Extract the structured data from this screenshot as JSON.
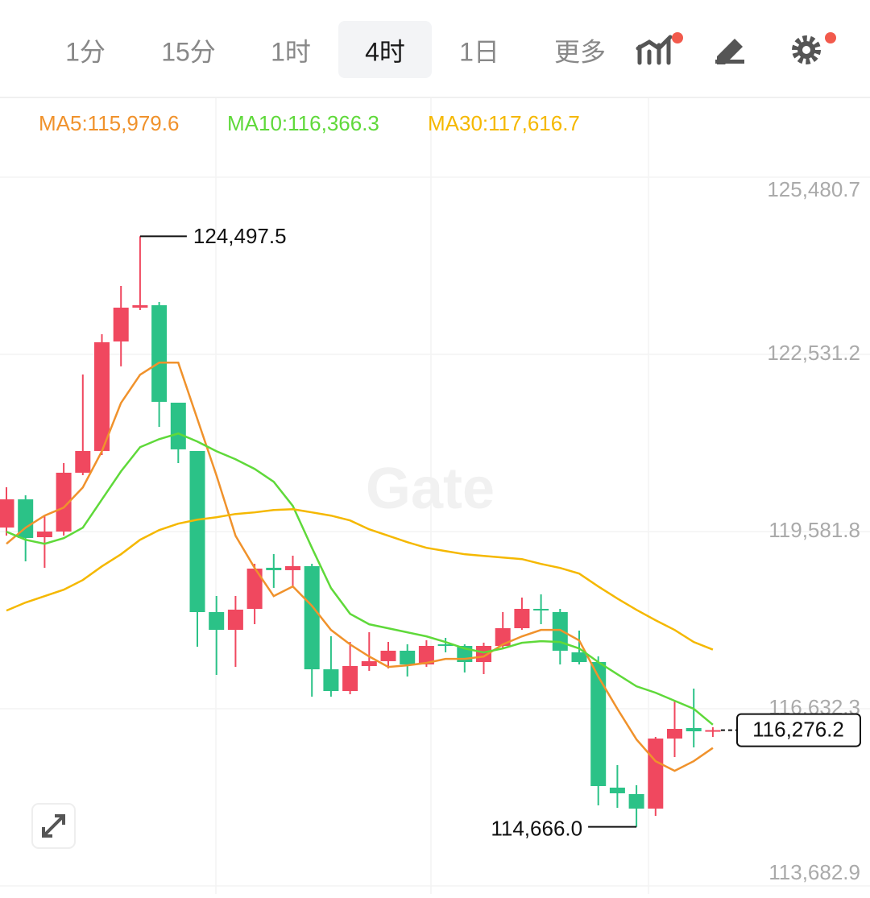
{
  "toolbar": {
    "tabs": [
      "1分",
      "15分",
      "1时",
      "4时",
      "1日",
      "更多"
    ],
    "active": 3
  },
  "chart_data": {
    "type": "candlestick",
    "watermark": "Gate",
    "up_color": "#f0485f",
    "down_color": "#2bc287",
    "ylim": [
      113682.9,
      125480.7
    ],
    "yticks": [
      {
        "value": 113682.9,
        "label": "113,682.9"
      },
      {
        "value": 116632.3,
        "label": "116,632.3"
      },
      {
        "value": 119581.8,
        "label": "119,581.8"
      },
      {
        "value": 122531.2,
        "label": "122,531.2"
      },
      {
        "value": 125480.7,
        "label": "125,480.7"
      }
    ],
    "grid": true,
    "open": [
      119649,
      120118,
      119488,
      119582,
      120561,
      120923,
      122746,
      123309,
      123349,
      121727,
      120923,
      118241,
      117946,
      118295,
      118979,
      118939,
      119006,
      117289,
      116927,
      117343,
      117424,
      117598,
      117370,
      117705,
      117678,
      117410,
      117678,
      117973,
      118295,
      118241,
      117571,
      117410,
      115319,
      115211,
      114970,
      116136,
      116311,
      116257
    ],
    "high": [
      120319,
      120185,
      119850,
      120722,
      122196,
      122867,
      123671,
      124497.5,
      123403,
      121727,
      120923,
      118510,
      118510,
      119046,
      119207,
      119180,
      119046,
      117839,
      117745,
      117906,
      117745,
      117705,
      117772,
      117812,
      117705,
      117732,
      118241,
      118483,
      118536,
      118295,
      117933,
      117504,
      115694,
      115359,
      116163,
      116767,
      116968,
      116324
    ],
    "low": [
      119515,
      119086,
      118979,
      119515,
      120521,
      120856,
      122331,
      123269,
      121325,
      120722,
      117665,
      117196,
      117330,
      118040,
      118644,
      118670,
      116834,
      116834,
      116874,
      117263,
      117303,
      117169,
      117330,
      117571,
      117236,
      117209,
      117638,
      117946,
      118040,
      117370,
      117370,
      115024,
      114983,
      114666.0,
      114849,
      115828,
      115989,
      116163
    ],
    "close": [
      120118,
      119475,
      119582,
      120561,
      120923,
      122733,
      123309,
      123349,
      121741,
      120950,
      118241,
      117946,
      118282,
      118965,
      118939,
      119006,
      117289,
      116927,
      117343,
      117424,
      117598,
      117370,
      117678,
      117678,
      117410,
      117678,
      117973,
      118295,
      118268,
      117598,
      117410,
      115345,
      115225,
      114970,
      116136,
      116297,
      116257,
      116276.2
    ],
    "overlays": [
      {
        "name": "MA5",
        "legend": "MA5:115,979.6",
        "color": "#f0922c",
        "values": [
          119378,
          119646,
          119847,
          119981,
          120316,
          120919,
          121723,
          122192,
          122393,
          122393,
          121455,
          120517,
          119512,
          118976,
          118507,
          118668,
          118346,
          117944,
          117703,
          117502,
          117328,
          117355,
          117395,
          117462,
          117462,
          117502,
          117703,
          117837,
          117944,
          117944,
          117770,
          117167,
          116631,
          116122,
          115760,
          115599,
          115760,
          115979.6
        ]
      },
      {
        "name": "MA10",
        "legend": "MA10:116,366.3",
        "color": "#5fd93a",
        "values": [
          119579,
          119445,
          119378,
          119472,
          119646,
          120115,
          120584,
          120986,
          121120,
          121214,
          121080,
          120919,
          120785,
          120624,
          120410,
          120008,
          119311,
          118641,
          118212,
          118038,
          117971,
          117904,
          117837,
          117743,
          117636,
          117569,
          117636,
          117730,
          117757,
          117743,
          117636,
          117408,
          117207,
          117006,
          116899,
          116765,
          116631,
          116366.3
        ]
      },
      {
        "name": "MA30",
        "legend": "MA30:117,616.7",
        "color": "#f5b800",
        "values": [
          118266,
          118400,
          118507,
          118614,
          118775,
          119003,
          119204,
          119445,
          119606,
          119713,
          119780,
          119820,
          119874,
          119901,
          119941,
          119954,
          119901,
          119847,
          119767,
          119619,
          119512,
          119405,
          119311,
          119257,
          119204,
          119177,
          119150,
          119123,
          119043,
          118976,
          118882,
          118668,
          118467,
          118279,
          118105,
          117944,
          117743,
          117616.7
        ]
      }
    ],
    "high_label": {
      "value": 124497.5,
      "label": "124,497.5"
    },
    "low_label": {
      "value": 114666.0,
      "label": "114,666.0"
    },
    "last_price": {
      "value": 116276.2,
      "label": "116,276.2"
    }
  }
}
